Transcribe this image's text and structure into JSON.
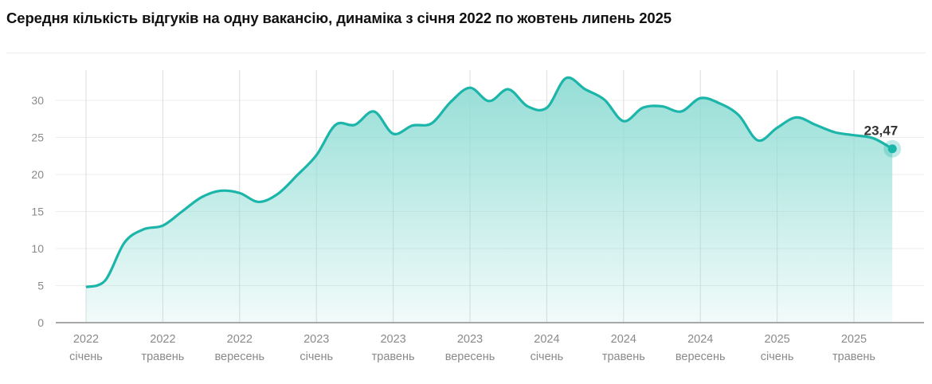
{
  "title": "Середня кількість відгуків на одну вакансію, динаміка з січня 2022 по жовтень липень 2025",
  "chart_data": {
    "type": "area",
    "title": "Середня кількість відгуків на одну вакансію, динаміка з січня 2022 по жовтень липень 2025",
    "xlabel": "",
    "ylabel": "",
    "ylim": [
      0,
      34
    ],
    "yticks": [
      0,
      5,
      10,
      15,
      20,
      25,
      30
    ],
    "grid": true,
    "line_color": "#1bb5aa",
    "fill_color": "#8fdcd4",
    "x_tick_labels": [
      {
        "year": "2022",
        "month": "січень"
      },
      {
        "year": "2022",
        "month": "травень"
      },
      {
        "year": "2022",
        "month": "вересень"
      },
      {
        "year": "2023",
        "month": "січень"
      },
      {
        "year": "2023",
        "month": "травень"
      },
      {
        "year": "2023",
        "month": "вересень"
      },
      {
        "year": "2024",
        "month": "січень"
      },
      {
        "year": "2024",
        "month": "травень"
      },
      {
        "year": "2024",
        "month": "вересень"
      },
      {
        "year": "2025",
        "month": "січень"
      },
      {
        "year": "2025",
        "month": "травень"
      }
    ],
    "x": [
      "2022-01",
      "2022-02",
      "2022-03",
      "2022-04",
      "2022-05",
      "2022-06",
      "2022-07",
      "2022-08",
      "2022-09",
      "2022-10",
      "2022-11",
      "2022-12",
      "2023-01",
      "2023-02",
      "2023-03",
      "2023-04",
      "2023-05",
      "2023-06",
      "2023-07",
      "2023-08",
      "2023-09",
      "2023-10",
      "2023-11",
      "2023-12",
      "2024-01",
      "2024-02",
      "2024-03",
      "2024-04",
      "2024-05",
      "2024-06",
      "2024-07",
      "2024-08",
      "2024-09",
      "2024-10",
      "2024-11",
      "2024-12",
      "2025-01",
      "2025-02",
      "2025-03",
      "2025-04",
      "2025-05",
      "2025-06",
      "2025-07"
    ],
    "values": [
      4.8,
      5.7,
      10.8,
      12.6,
      13.1,
      15.0,
      16.9,
      17.8,
      17.5,
      16.3,
      17.4,
      19.9,
      22.6,
      26.7,
      26.7,
      28.5,
      25.5,
      26.6,
      26.9,
      29.8,
      31.7,
      29.9,
      31.5,
      29.2,
      29.0,
      33.0,
      31.5,
      30.1,
      27.2,
      29.0,
      29.2,
      28.5,
      30.3,
      29.6,
      28.0,
      24.6,
      26.3,
      27.7,
      26.7,
      25.7,
      25.3,
      24.9,
      23.47
    ],
    "last_point_label": "23,47"
  }
}
